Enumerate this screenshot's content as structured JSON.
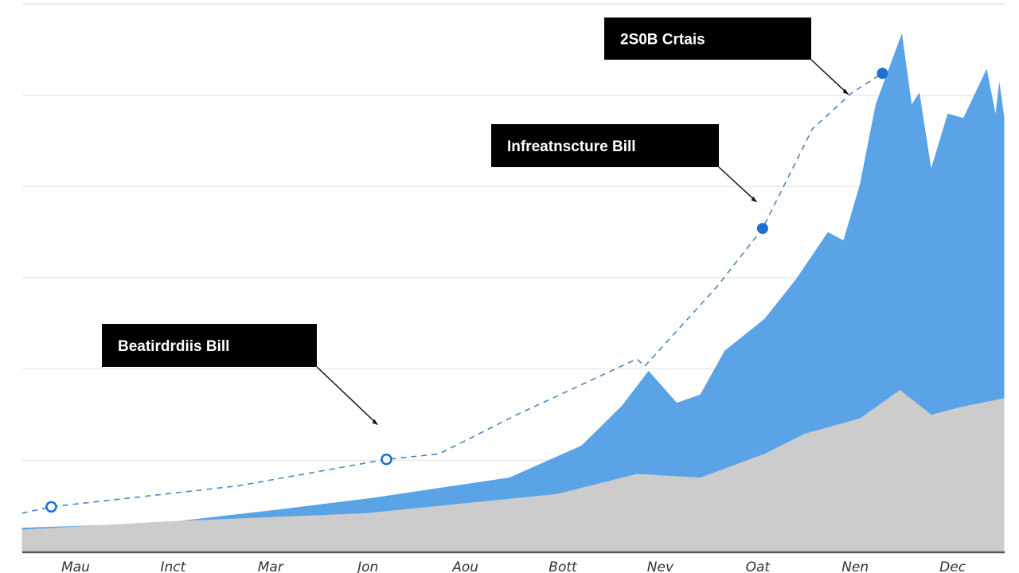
{
  "chart_data": {
    "type": "area",
    "title": "",
    "xlabel": "",
    "ylabel": "",
    "categories": [
      "Mau",
      "Inct",
      "Mar",
      "Jon",
      "Aou",
      "Bott",
      "Nev",
      "Oat",
      "Nen",
      "Dec"
    ],
    "ylim": [
      0,
      6
    ],
    "grid": true,
    "colors": {
      "gray_area": "#cccccc",
      "blue_area": "#5aa3e6",
      "dashed_line": "#4a86c0",
      "marker": "#1f6fd1",
      "annotation_bg": "#000000"
    },
    "series": [
      {
        "key": "blue",
        "x": [
          -0.55,
          0.86,
          2.08,
          3.06,
          4.45,
          5.19,
          5.6,
          5.88,
          6.17,
          6.41,
          6.66,
          7.07,
          7.39,
          7.72,
          7.88,
          8.05,
          8.21,
          8.48,
          8.58,
          8.66,
          8.78,
          8.95,
          9.11,
          9.35,
          9.44,
          9.48,
          9.53
        ],
        "values": [
          0.26,
          0.31,
          0.46,
          0.59,
          0.81,
          1.16,
          1.59,
          1.98,
          1.63,
          1.72,
          2.2,
          2.55,
          2.98,
          3.5,
          3.41,
          4.03,
          4.9,
          5.68,
          4.9,
          5.03,
          4.2,
          4.8,
          4.75,
          5.29,
          4.8,
          5.15,
          4.76
        ]
      },
      {
        "key": "gray",
        "x": [
          -0.55,
          0.94,
          2.98,
          4.94,
          5.76,
          6.41,
          7.07,
          7.48,
          8.05,
          8.46,
          8.78,
          9.11,
          9.53
        ],
        "values": [
          0.24,
          0.33,
          0.42,
          0.63,
          0.85,
          0.81,
          1.07,
          1.29,
          1.46,
          1.77,
          1.5,
          1.59,
          1.68
        ]
      },
      {
        "key": "trend",
        "style": "dashed",
        "x": [
          -0.55,
          -0.25,
          1.67,
          3.19,
          3.73,
          4.53,
          5.76,
          5.84,
          6.58,
          7.05,
          7.56,
          7.97,
          8.28
        ],
        "values": [
          0.42,
          0.49,
          0.72,
          1.01,
          1.07,
          1.5,
          2.11,
          2.03,
          2.9,
          3.54,
          4.63,
          5.03,
          5.24
        ],
        "markers": [
          {
            "x": -0.25,
            "y": 0.49,
            "filled": false
          },
          {
            "x": 3.19,
            "y": 1.01,
            "filled": false
          },
          {
            "x": 7.05,
            "y": 3.54,
            "filled": true
          },
          {
            "x": 8.28,
            "y": 5.24,
            "filled": true
          }
        ]
      }
    ],
    "annotations": [
      {
        "text": "Beatirdrdiis Bill",
        "target": {
          "x": 3.1,
          "y": 1.39
        }
      },
      {
        "text": "Infreatnscture Bill",
        "target": {
          "x": 6.99,
          "y": 3.83
        }
      },
      {
        "text": "2S0B Crtais",
        "target": {
          "x": 7.93,
          "y": 5.01
        }
      }
    ]
  }
}
